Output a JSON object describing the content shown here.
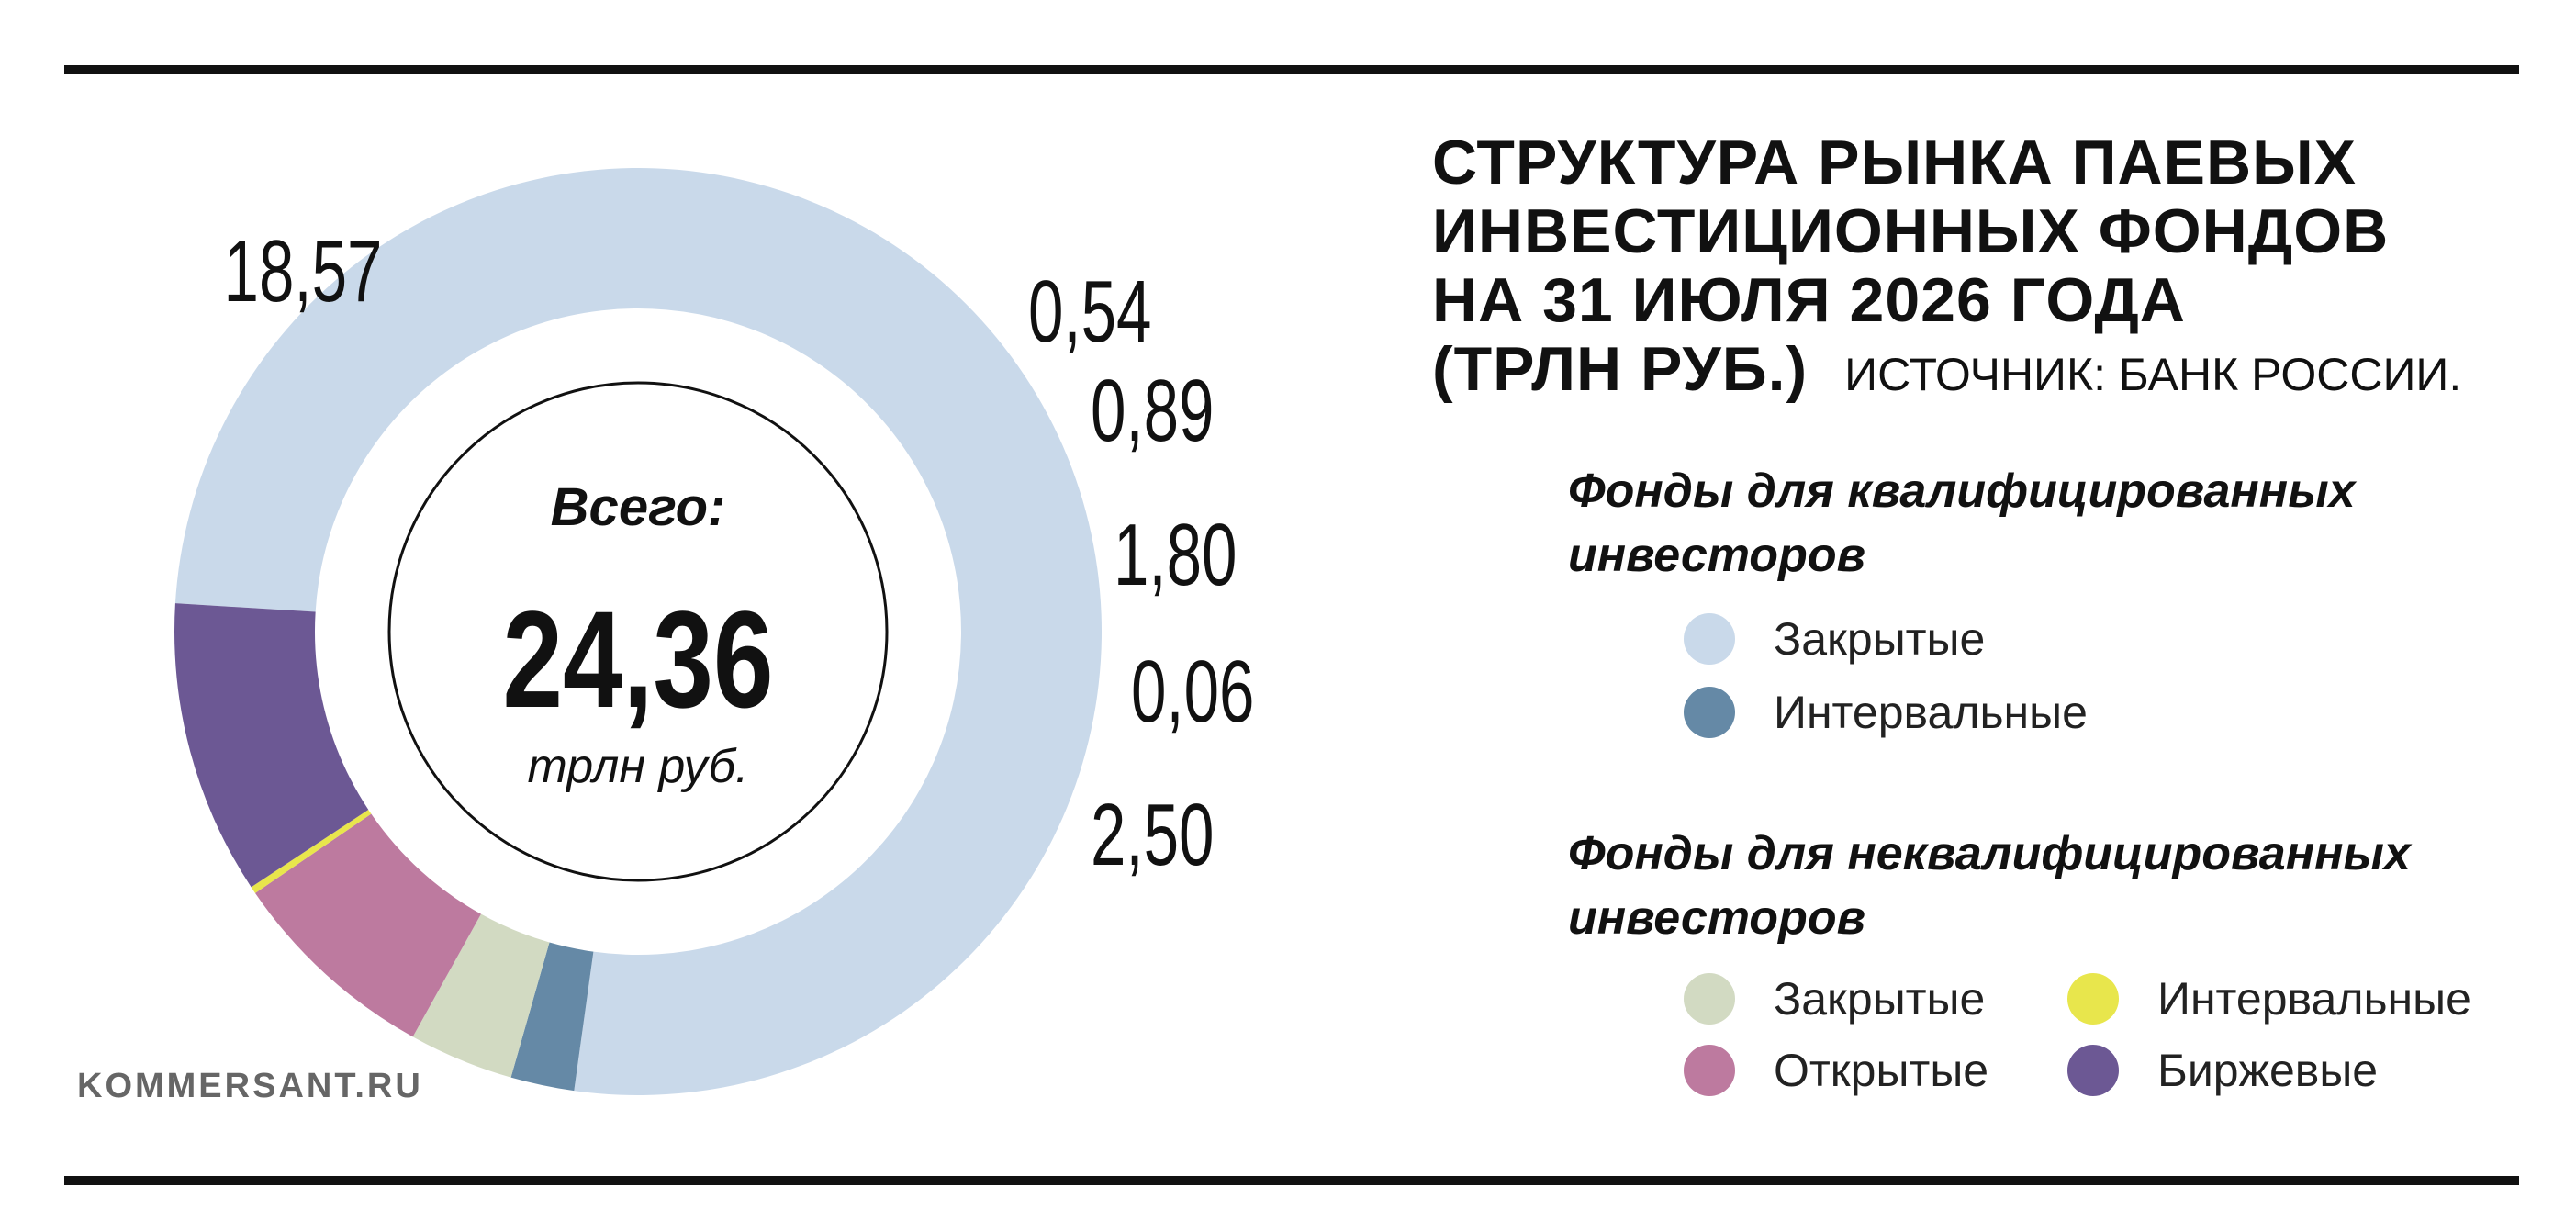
{
  "title_lines": [
    "СТРУКТУРА РЫНКА ПАЕВЫХ",
    "ИНВЕСТИЦИОННЫХ ФОНДОВ",
    "НА 31 ИЮЛЯ 2026 ГОДА",
    "(ТРЛН РУБ.)"
  ],
  "source": "ИСТОЧНИК: БАНК РОССИИ.",
  "brand": "KOMMERSANT.RU",
  "center": {
    "label": "Всего:",
    "total": "24,36",
    "unit": "трлн руб."
  },
  "legend": {
    "qualified": {
      "title": "Фонды для квалифицированных инвесторов",
      "items": [
        {
          "label": "Закрытые",
          "color": "#c9d9ea"
        },
        {
          "label": "Интервальные",
          "color": "#6589a6"
        }
      ]
    },
    "unqualified": {
      "title": "Фонды для неквалифицированных инвесторов",
      "items": [
        {
          "label": "Закрытые",
          "color": "#d2dac2"
        },
        {
          "label": "Интервальные",
          "color": "#e8e64c"
        },
        {
          "label": "Открытые",
          "color": "#bd7a9f"
        },
        {
          "label": "Биржевые",
          "color": "#6c5894"
        }
      ]
    }
  },
  "chart_data": {
    "type": "pie",
    "title": "СТРУКТУРА РЫНКА ПАЕВЫХ ИНВЕСТИЦИОННЫХ ФОНДОВ НА 31 ИЮЛЯ 2026 ГОДА (ТРЛН РУБ.)",
    "total": 24.36,
    "slices": [
      {
        "group": "Фонды для квалифицированных инвесторов",
        "name": "Закрытые",
        "value": 18.57,
        "label": "18,57",
        "color": "#c9d9ea"
      },
      {
        "group": "Фонды для квалифицированных инвесторов",
        "name": "Интервальные",
        "value": 0.54,
        "label": "0,54",
        "color": "#6589a6"
      },
      {
        "group": "Фонды для неквалифицированных инвесторов",
        "name": "Закрытые",
        "value": 0.89,
        "label": "0,89",
        "color": "#d2dac2"
      },
      {
        "group": "Фонды для неквалифицированных инвесторов",
        "name": "Открытые",
        "value": 1.8,
        "label": "1,80",
        "color": "#bd7a9f"
      },
      {
        "group": "Фонды для неквалифицированных инвесторов",
        "name": "Интервальные",
        "value": 0.06,
        "label": "0,06",
        "color": "#e8e64c"
      },
      {
        "group": "Фонды для неквалифицированных инвесторов",
        "name": "Биржевые",
        "value": 2.5,
        "label": "2,50",
        "color": "#6c5894"
      }
    ]
  }
}
